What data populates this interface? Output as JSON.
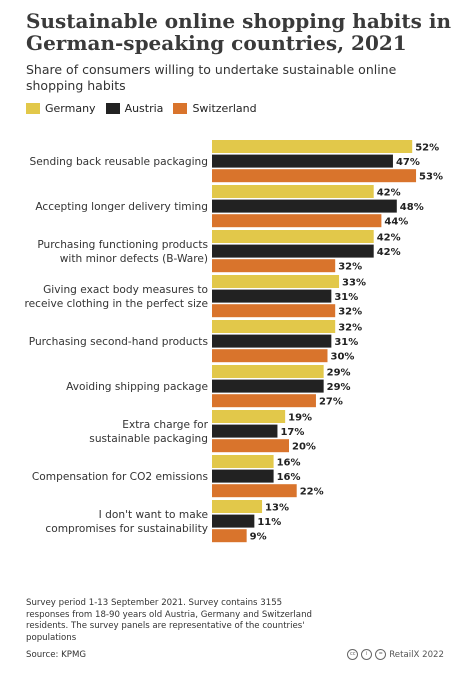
{
  "header": {
    "title": "Sustainable online shopping habits in German-speaking countries, 2021",
    "subtitle": "Share of consumers willing to undertake sustainable online shopping habits"
  },
  "colors": {
    "Germany": "#e2c84a",
    "Austria": "#222222",
    "Switzerland": "#d9742c"
  },
  "chart_data": {
    "type": "bar",
    "orientation": "horizontal",
    "title": "Sustainable online shopping habits in German-speaking countries, 2021",
    "subtitle": "Share of consumers willing to undertake sustainable online shopping habits",
    "legend_position": "top-left",
    "grid": false,
    "xlim": [
      0,
      55
    ],
    "categories": [
      [
        "Sending back reusable packaging"
      ],
      [
        "Accepting longer delivery timing"
      ],
      [
        "Purchasing functioning products",
        "with minor defects (B-Ware)"
      ],
      [
        "Giving exact body measures to",
        "receive clothing in the perfect size"
      ],
      [
        "Purchasing second-hand products"
      ],
      [
        "Avoiding shipping package"
      ],
      [
        "Extra charge for",
        "sustainable packaging"
      ],
      [
        "Compensation for CO2 emissions"
      ],
      [
        "I don't want to make",
        "compromises for sustainability"
      ]
    ],
    "series": [
      {
        "name": "Germany",
        "values": [
          52,
          42,
          42,
          33,
          32,
          29,
          19,
          16,
          13
        ]
      },
      {
        "name": "Austria",
        "values": [
          47,
          48,
          42,
          31,
          31,
          29,
          17,
          16,
          11
        ]
      },
      {
        "name": "Switzerland",
        "values": [
          53,
          44,
          32,
          32,
          30,
          27,
          20,
          22,
          9
        ]
      }
    ],
    "value_suffix": "%"
  },
  "footer": {
    "note": "Survey period 1-13 September 2021. Survey contains 3155 responses from 18-90 years old Austria, Germany and Switzerland residents. The survey panels are representative of the countries' populations",
    "source": "Source: KPMG",
    "brand": "RetailX 2022",
    "license_icons": [
      "cc-icon",
      "by-icon",
      "nd-icon"
    ]
  }
}
